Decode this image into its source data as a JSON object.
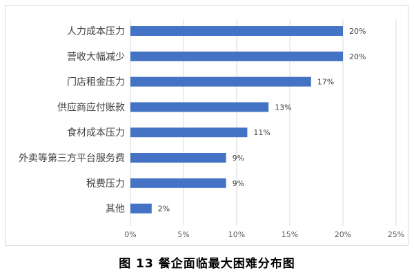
{
  "caption": "图 13  餐企面临最大困难分布图",
  "chart_data": {
    "type": "bar",
    "orientation": "horizontal",
    "categories": [
      "人力成本压力",
      "营收大幅减少",
      "门店租金压力",
      "供应商应付账款",
      "食材成本压力",
      "外卖等第三方平台服务费",
      "税费压力",
      "其他"
    ],
    "values": [
      20,
      20,
      17,
      13,
      11,
      9,
      9,
      2
    ],
    "value_labels": [
      "20%",
      "20%",
      "17%",
      "13%",
      "11%",
      "9%",
      "9%",
      "2%"
    ],
    "x_ticks": [
      0,
      5,
      10,
      15,
      20,
      25
    ],
    "x_tick_labels": [
      "0%",
      "5%",
      "10%",
      "15%",
      "20%",
      "25%"
    ],
    "xlim": [
      0,
      25
    ],
    "grid": "vertical",
    "legend": "none",
    "bar_color": "#4472c4",
    "title": "",
    "xlabel": "",
    "ylabel": ""
  }
}
